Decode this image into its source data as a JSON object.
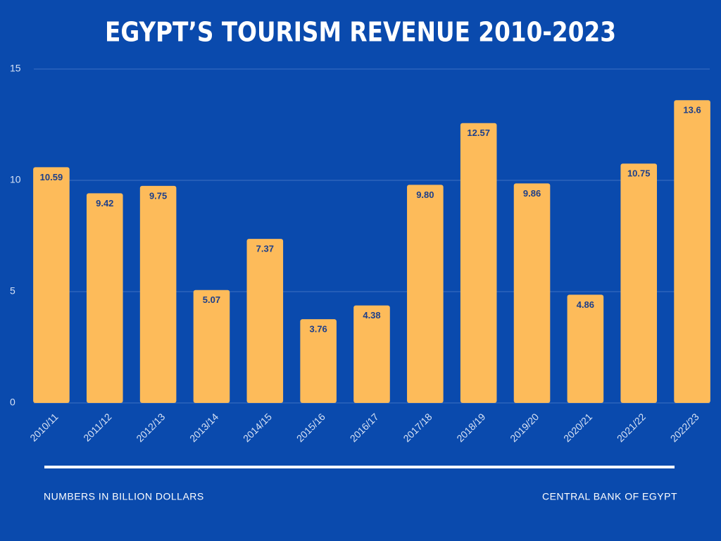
{
  "chart_data": {
    "type": "bar",
    "title": "EGYPT’S TOURISM REVENUE 2010-2023",
    "categories": [
      "2010/11",
      "2011/12",
      "2012/13",
      "2013/14",
      "2014/15",
      "2015/16",
      "2016/17",
      "2017/18",
      "2018/19",
      "2019/20",
      "2020/21",
      "2021/22",
      "2022/23"
    ],
    "values": [
      10.59,
      9.42,
      9.75,
      5.07,
      7.37,
      3.76,
      4.38,
      9.8,
      12.57,
      9.86,
      4.86,
      10.75,
      13.6
    ],
    "value_labels": [
      "10.59",
      "9.42",
      "9.75",
      "5.07",
      "7.37",
      "3.76",
      "4.38",
      "9.80",
      "12.57",
      "9.86",
      "4.86",
      "10.75",
      "13.6"
    ],
    "color": "#fdbb5a",
    "ylim": [
      0,
      15
    ],
    "yticks": [
      0,
      5,
      10,
      15
    ],
    "grid": true,
    "footnote": "NUMBERS IN BILLION DOLLARS",
    "source": "CENTRAL BANK OF EGYPT"
  }
}
